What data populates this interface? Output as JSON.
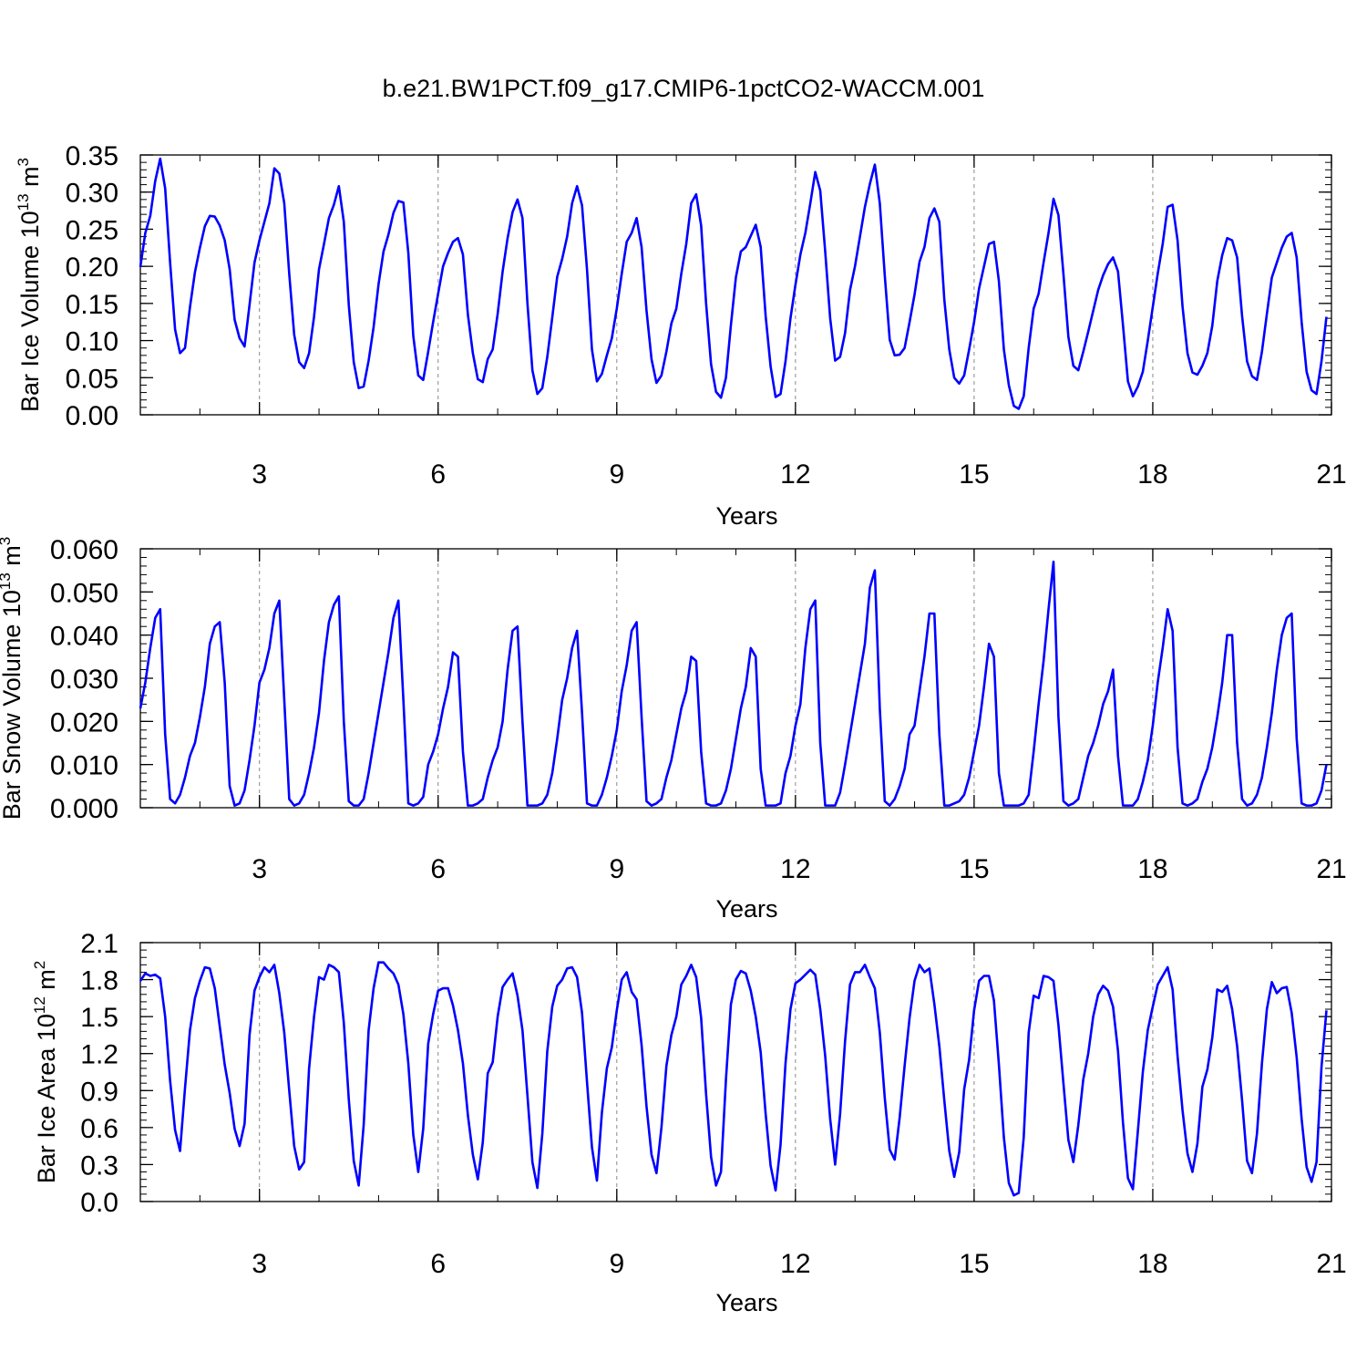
{
  "title": "b.e21.BW1PCT.f09_g17.CMIP6-1pctCO2-WACCM.001",
  "colors": {
    "series": "#0000ff",
    "frame": "#000000",
    "grid": "#888888"
  },
  "chart_data": [
    {
      "type": "line",
      "ylabel": "Bar Ice Volume 10",
      "ylabel_exp": "13",
      "ylabel_unit": " m",
      "ylabel_unit_exp": "3",
      "xlabel": "Years",
      "xlim": [
        1,
        21
      ],
      "ylim": [
        0,
        0.35
      ],
      "xticks": [
        3,
        6,
        9,
        12,
        15,
        18,
        21
      ],
      "yticks": [
        "0.00",
        "0.05",
        "0.10",
        "0.15",
        "0.20",
        "0.25",
        "0.30",
        "0.35"
      ],
      "vgrid": [
        3,
        6,
        9,
        12,
        15,
        18
      ],
      "x_start": 1,
      "x_step": 0.08333,
      "values": [
        0.199,
        0.245,
        0.268,
        0.315,
        0.345,
        0.305,
        0.205,
        0.115,
        0.083,
        0.09,
        0.145,
        0.192,
        0.225,
        0.254,
        0.268,
        0.267,
        0.255,
        0.235,
        0.196,
        0.128,
        0.103,
        0.092,
        0.148,
        0.205,
        0.235,
        0.26,
        0.285,
        0.332,
        0.325,
        0.285,
        0.19,
        0.108,
        0.071,
        0.063,
        0.083,
        0.132,
        0.196,
        0.23,
        0.265,
        0.283,
        0.308,
        0.26,
        0.148,
        0.071,
        0.036,
        0.038,
        0.073,
        0.118,
        0.176,
        0.22,
        0.243,
        0.272,
        0.288,
        0.286,
        0.218,
        0.106,
        0.053,
        0.047,
        0.085,
        0.125,
        0.163,
        0.2,
        0.218,
        0.233,
        0.238,
        0.216,
        0.135,
        0.083,
        0.048,
        0.044,
        0.075,
        0.088,
        0.136,
        0.193,
        0.238,
        0.273,
        0.29,
        0.265,
        0.15,
        0.06,
        0.028,
        0.036,
        0.078,
        0.131,
        0.186,
        0.21,
        0.24,
        0.285,
        0.308,
        0.282,
        0.196,
        0.088,
        0.045,
        0.055,
        0.08,
        0.103,
        0.143,
        0.19,
        0.233,
        0.245,
        0.265,
        0.226,
        0.14,
        0.075,
        0.043,
        0.053,
        0.085,
        0.123,
        0.143,
        0.19,
        0.23,
        0.285,
        0.297,
        0.255,
        0.15,
        0.068,
        0.031,
        0.023,
        0.05,
        0.121,
        0.185,
        0.22,
        0.226,
        0.241,
        0.256,
        0.226,
        0.133,
        0.065,
        0.024,
        0.028,
        0.072,
        0.13,
        0.175,
        0.216,
        0.245,
        0.285,
        0.327,
        0.302,
        0.22,
        0.13,
        0.073,
        0.078,
        0.11,
        0.168,
        0.2,
        0.24,
        0.28,
        0.311,
        0.337,
        0.285,
        0.188,
        0.101,
        0.08,
        0.081,
        0.09,
        0.125,
        0.162,
        0.206,
        0.226,
        0.265,
        0.278,
        0.26,
        0.155,
        0.088,
        0.05,
        0.042,
        0.053,
        0.088,
        0.125,
        0.17,
        0.2,
        0.23,
        0.233,
        0.18,
        0.088,
        0.04,
        0.012,
        0.008,
        0.025,
        0.09,
        0.143,
        0.163,
        0.205,
        0.245,
        0.291,
        0.269,
        0.19,
        0.105,
        0.066,
        0.06,
        0.085,
        0.112,
        0.14,
        0.168,
        0.188,
        0.203,
        0.212,
        0.193,
        0.121,
        0.045,
        0.025,
        0.038,
        0.058,
        0.1,
        0.145,
        0.19,
        0.23,
        0.28,
        0.283,
        0.235,
        0.146,
        0.083,
        0.057,
        0.054,
        0.066,
        0.083,
        0.12,
        0.18,
        0.215,
        0.238,
        0.235,
        0.212,
        0.133,
        0.072,
        0.052,
        0.047,
        0.085,
        0.136,
        0.185,
        0.205,
        0.225,
        0.24,
        0.245,
        0.212,
        0.125,
        0.058,
        0.033,
        0.028,
        0.072,
        0.132
      ]
    },
    {
      "type": "line",
      "ylabel": "Bar Snow Volume 10",
      "ylabel_exp": "13",
      "ylabel_unit": " m",
      "ylabel_unit_exp": "3",
      "xlabel": "Years",
      "xlim": [
        1,
        21
      ],
      "ylim": [
        0,
        0.06
      ],
      "xticks": [
        3,
        6,
        9,
        12,
        15,
        18,
        21
      ],
      "yticks": [
        "0.000",
        "0.010",
        "0.020",
        "0.030",
        "0.040",
        "0.050",
        "0.060"
      ],
      "vgrid": [
        3,
        6,
        9,
        12,
        15,
        18
      ],
      "x_start": 1,
      "x_step": 0.08333,
      "values": [
        0.023,
        0.029,
        0.037,
        0.044,
        0.046,
        0.017,
        0.002,
        0.001,
        0.003,
        0.007,
        0.012,
        0.015,
        0.021,
        0.028,
        0.038,
        0.042,
        0.043,
        0.029,
        0.005,
        0.0005,
        0.001,
        0.004,
        0.011,
        0.019,
        0.029,
        0.032,
        0.037,
        0.045,
        0.048,
        0.025,
        0.002,
        0.0005,
        0.001,
        0.003,
        0.008,
        0.014,
        0.022,
        0.034,
        0.043,
        0.047,
        0.049,
        0.02,
        0.0015,
        0.0005,
        0.0005,
        0.002,
        0.008,
        0.015,
        0.022,
        0.029,
        0.036,
        0.044,
        0.048,
        0.025,
        0.001,
        0.0005,
        0.001,
        0.0025,
        0.01,
        0.013,
        0.017,
        0.023,
        0.028,
        0.036,
        0.035,
        0.013,
        0.0005,
        0.0005,
        0.001,
        0.002,
        0.007,
        0.011,
        0.014,
        0.02,
        0.032,
        0.041,
        0.042,
        0.02,
        0.0005,
        0.0005,
        0.0005,
        0.001,
        0.003,
        0.008,
        0.016,
        0.025,
        0.03,
        0.037,
        0.041,
        0.022,
        0.001,
        0.0005,
        0.0005,
        0.003,
        0.007,
        0.012,
        0.018,
        0.027,
        0.033,
        0.041,
        0.043,
        0.021,
        0.0015,
        0.0005,
        0.001,
        0.002,
        0.007,
        0.011,
        0.017,
        0.023,
        0.027,
        0.035,
        0.034,
        0.013,
        0.001,
        0.0005,
        0.0005,
        0.001,
        0.004,
        0.009,
        0.016,
        0.023,
        0.028,
        0.037,
        0.035,
        0.009,
        0.0005,
        0.0005,
        0.0005,
        0.001,
        0.008,
        0.012,
        0.019,
        0.024,
        0.037,
        0.046,
        0.048,
        0.015,
        0.0005,
        0.0005,
        0.0005,
        0.0035,
        0.01,
        0.017,
        0.024,
        0.031,
        0.038,
        0.051,
        0.055,
        0.023,
        0.0015,
        0.0005,
        0.002,
        0.005,
        0.009,
        0.017,
        0.019,
        0.027,
        0.035,
        0.045,
        0.045,
        0.017,
        0.0005,
        0.0005,
        0.001,
        0.0015,
        0.003,
        0.007,
        0.013,
        0.019,
        0.028,
        0.038,
        0.035,
        0.008,
        0.0005,
        0.0005,
        0.0005,
        0.0005,
        0.001,
        0.003,
        0.013,
        0.024,
        0.034,
        0.046,
        0.057,
        0.021,
        0.0015,
        0.0005,
        0.001,
        0.002,
        0.007,
        0.012,
        0.015,
        0.019,
        0.024,
        0.027,
        0.032,
        0.012,
        0.0005,
        0.0005,
        0.0005,
        0.002,
        0.006,
        0.011,
        0.019,
        0.029,
        0.037,
        0.046,
        0.041,
        0.014,
        0.001,
        0.0005,
        0.001,
        0.002,
        0.006,
        0.009,
        0.014,
        0.021,
        0.029,
        0.04,
        0.04,
        0.015,
        0.002,
        0.0005,
        0.001,
        0.003,
        0.007,
        0.014,
        0.022,
        0.032,
        0.04,
        0.044,
        0.045,
        0.016,
        0.001,
        0.0005,
        0.0005,
        0.001,
        0.004,
        0.01
      ]
    },
    {
      "type": "line",
      "ylabel": "Bar Ice Area 10",
      "ylabel_exp": "12",
      "ylabel_unit": " m",
      "ylabel_unit_exp": "2",
      "xlabel": "Years",
      "xlim": [
        1,
        21
      ],
      "ylim": [
        0,
        2.1
      ],
      "xticks": [
        3,
        6,
        9,
        12,
        15,
        18,
        21
      ],
      "yticks": [
        "0.0",
        "0.3",
        "0.6",
        "0.9",
        "1.2",
        "1.5",
        "1.8",
        "2.1"
      ],
      "vgrid": [
        3,
        6,
        9,
        12,
        15,
        18
      ],
      "x_start": 1,
      "x_step": 0.08333,
      "values": [
        1.79,
        1.85,
        1.83,
        1.84,
        1.81,
        1.5,
        0.98,
        0.58,
        0.41,
        0.92,
        1.39,
        1.65,
        1.79,
        1.9,
        1.89,
        1.73,
        1.42,
        1.11,
        0.88,
        0.59,
        0.45,
        0.63,
        1.35,
        1.71,
        1.82,
        1.9,
        1.86,
        1.92,
        1.69,
        1.37,
        0.9,
        0.45,
        0.26,
        0.32,
        1.08,
        1.5,
        1.82,
        1.8,
        1.92,
        1.9,
        1.86,
        1.45,
        0.83,
        0.33,
        0.13,
        0.62,
        1.39,
        1.73,
        1.94,
        1.94,
        1.89,
        1.85,
        1.76,
        1.52,
        1.12,
        0.54,
        0.24,
        0.59,
        1.28,
        1.52,
        1.71,
        1.73,
        1.73,
        1.59,
        1.39,
        1.12,
        0.7,
        0.38,
        0.18,
        0.48,
        1.04,
        1.13,
        1.5,
        1.74,
        1.8,
        1.85,
        1.67,
        1.39,
        0.86,
        0.32,
        0.11,
        0.55,
        1.22,
        1.58,
        1.75,
        1.8,
        1.89,
        1.9,
        1.82,
        1.53,
        0.97,
        0.44,
        0.17,
        0.72,
        1.08,
        1.25,
        1.55,
        1.8,
        1.86,
        1.7,
        1.64,
        1.27,
        0.77,
        0.38,
        0.23,
        0.6,
        1.1,
        1.35,
        1.5,
        1.76,
        1.83,
        1.92,
        1.82,
        1.49,
        0.87,
        0.36,
        0.13,
        0.24,
        0.99,
        1.6,
        1.8,
        1.87,
        1.85,
        1.71,
        1.5,
        1.21,
        0.71,
        0.29,
        0.09,
        0.46,
        1.12,
        1.56,
        1.77,
        1.8,
        1.84,
        1.88,
        1.84,
        1.56,
        1.18,
        0.67,
        0.3,
        0.71,
        1.3,
        1.76,
        1.86,
        1.86,
        1.92,
        1.82,
        1.73,
        1.37,
        0.84,
        0.42,
        0.34,
        0.68,
        1.1,
        1.49,
        1.79,
        1.92,
        1.86,
        1.89,
        1.6,
        1.26,
        0.82,
        0.41,
        0.2,
        0.4,
        0.91,
        1.15,
        1.55,
        1.79,
        1.83,
        1.83,
        1.63,
        1.11,
        0.52,
        0.15,
        0.05,
        0.07,
        0.52,
        1.37,
        1.67,
        1.65,
        1.83,
        1.82,
        1.79,
        1.43,
        0.96,
        0.5,
        0.32,
        0.62,
        0.99,
        1.2,
        1.5,
        1.68,
        1.75,
        1.71,
        1.58,
        1.22,
        0.64,
        0.19,
        0.1,
        0.57,
        1.05,
        1.39,
        1.58,
        1.76,
        1.83,
        1.9,
        1.72,
        1.18,
        0.74,
        0.39,
        0.24,
        0.47,
        0.93,
        1.07,
        1.33,
        1.72,
        1.7,
        1.75,
        1.56,
        1.26,
        0.82,
        0.33,
        0.23,
        0.55,
        1.12,
        1.56,
        1.78,
        1.69,
        1.73,
        1.74,
        1.53,
        1.17,
        0.67,
        0.28,
        0.16,
        0.32,
        1.09,
        1.55
      ]
    }
  ]
}
